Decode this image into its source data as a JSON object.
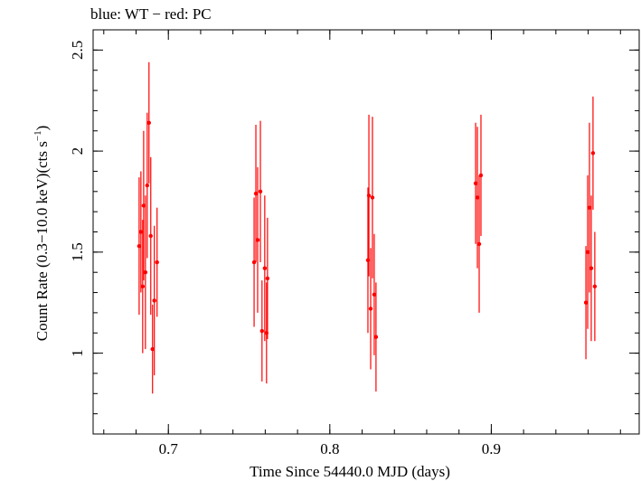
{
  "chart_data": {
    "type": "scatter",
    "title": "blue: WT − red: PC",
    "xlabel": "Time Since 54440.0 MJD (days)",
    "ylabel_main": "Count Rate (0.3−10.0 keV)(cts s",
    "ylabel_sup": "−1",
    "ylabel_end": ")",
    "xlim": [
      0.6534,
      0.9916
    ],
    "ylim": [
      0.6,
      2.6
    ],
    "x_ticks": [
      {
        "value": 0.7,
        "label": "0.7"
      },
      {
        "value": 0.8,
        "label": "0.8"
      },
      {
        "value": 0.9,
        "label": "0.9"
      }
    ],
    "y_ticks": [
      {
        "value": 1.0,
        "label": "1"
      },
      {
        "value": 1.5,
        "label": "1.5"
      },
      {
        "value": 2.0,
        "label": "2"
      },
      {
        "value": 2.5,
        "label": "2.5"
      }
    ],
    "x_minor_step": 0.02,
    "y_minor_step": 0.1,
    "grid": false,
    "series": [
      {
        "color": "#ff0000",
        "points": [
          {
            "x": 0.6819,
            "y": 1.53,
            "err": 0.34
          },
          {
            "x": 0.683,
            "y": 1.6,
            "err": 0.3
          },
          {
            "x": 0.6841,
            "y": 1.33,
            "err": 0.33
          },
          {
            "x": 0.6847,
            "y": 1.73,
            "err": 0.37
          },
          {
            "x": 0.6858,
            "y": 1.4,
            "err": 0.38
          },
          {
            "x": 0.6869,
            "y": 1.83,
            "err": 0.36
          },
          {
            "x": 0.688,
            "y": 2.14,
            "err": 0.3
          },
          {
            "x": 0.6891,
            "y": 1.58,
            "err": 0.39
          },
          {
            "x": 0.6902,
            "y": 1.02,
            "err": 0.22
          },
          {
            "x": 0.6913,
            "y": 1.26,
            "err": 0.37
          },
          {
            "x": 0.693,
            "y": 1.45,
            "err": 0.27
          },
          {
            "x": 0.7531,
            "y": 1.45,
            "err": 0.32
          },
          {
            "x": 0.7542,
            "y": 1.79,
            "err": 0.34
          },
          {
            "x": 0.7553,
            "y": 1.56,
            "err": 0.36
          },
          {
            "x": 0.757,
            "y": 1.8,
            "err": 0.35
          },
          {
            "x": 0.758,
            "y": 1.11,
            "err": 0.25
          },
          {
            "x": 0.7597,
            "y": 1.42,
            "err": 0.36
          },
          {
            "x": 0.7608,
            "y": 1.1,
            "err": 0.25
          },
          {
            "x": 0.7614,
            "y": 1.37,
            "err": 0.3
          },
          {
            "x": 0.8236,
            "y": 1.46,
            "err": 0.36
          },
          {
            "x": 0.8242,
            "y": 1.78,
            "err": 0.4
          },
          {
            "x": 0.8253,
            "y": 1.22,
            "err": 0.3
          },
          {
            "x": 0.8264,
            "y": 1.77,
            "err": 0.4
          },
          {
            "x": 0.8275,
            "y": 1.29,
            "err": 0.3
          },
          {
            "x": 0.8286,
            "y": 1.08,
            "err": 0.27
          },
          {
            "x": 0.8903,
            "y": 1.84,
            "err": 0.3
          },
          {
            "x": 0.8914,
            "y": 1.77,
            "err": 0.35
          },
          {
            "x": 0.8925,
            "y": 1.54,
            "err": 0.34
          },
          {
            "x": 0.8936,
            "y": 1.88,
            "err": 0.3
          },
          {
            "x": 0.9586,
            "y": 1.25,
            "err": 0.28
          },
          {
            "x": 0.9597,
            "y": 1.5,
            "err": 0.38
          },
          {
            "x": 0.9608,
            "y": 1.72,
            "err": 0.42
          },
          {
            "x": 0.9619,
            "y": 1.42,
            "err": 0.36
          },
          {
            "x": 0.963,
            "y": 1.99,
            "err": 0.28
          },
          {
            "x": 0.9641,
            "y": 1.33,
            "err": 0.27
          }
        ]
      }
    ]
  }
}
